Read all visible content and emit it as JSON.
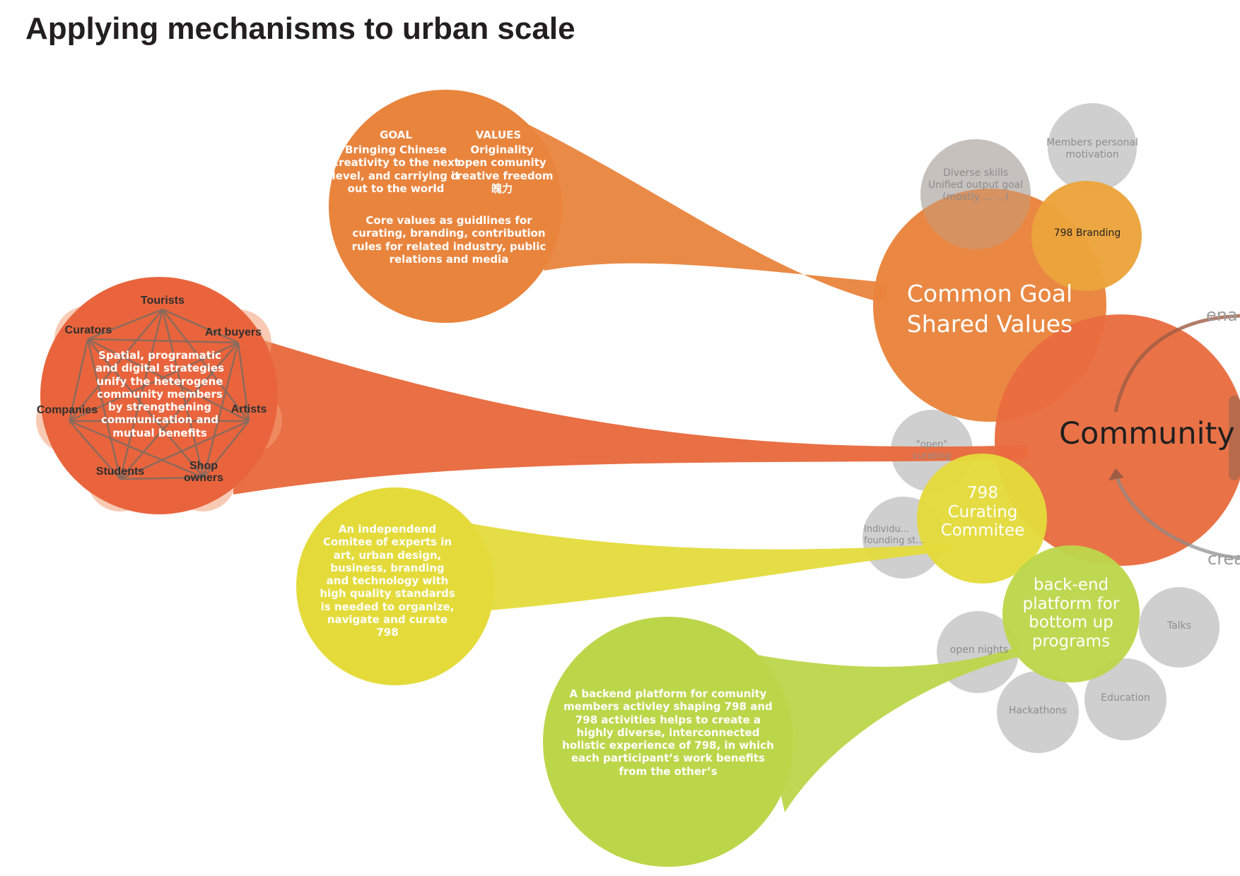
{
  "title": "Applying mechanisms to urban scale",
  "colors": {
    "orange": "#e9843d",
    "red_orange": "#e96c40",
    "amber": "#eba43c",
    "yellow": "#e4db3b",
    "green": "#bcd64a",
    "gray": "#c7c7c7",
    "dark_text": "#231f20"
  },
  "goal_bubble": {
    "goal_heading": "GOAL",
    "goal_text": "Bringing Chinese\ncreativity to the next\nlevel, and carriying it\nout to the world",
    "values_heading": "VALUES",
    "values_text": "Originality\nopen comunity\ncreative freedom\n魄力",
    "core_text": "Core values as guidlines for\ncurating, branding, contribution\nrules for related industry, public\nrelations and media"
  },
  "community_bubble": {
    "center_text": "Spatial, programatic\nand digital strategies\nunify the heterogene\ncommunity members\nby strengthening\ncommunication and\nmutual benefits",
    "nodes": [
      "Tourists",
      "Art buyers",
      "Artists",
      "Shop\nowners",
      "Students",
      "Companies",
      "Curators"
    ]
  },
  "committee_bubble": {
    "text": "An independend\nComitee of experts in\nart, urban design,\nbusiness, branding\nand technology with\nhigh quality standards\nis needed to organize,\nnavigate and curate\n798"
  },
  "platform_bubble": {
    "text": "A backend platform for comunity\nmembers activley shaping 798 and\n798 activities helps to create a\nhighly diverse, interconnected\nholistic experience of 798, in which\neach participant’s work benefits\nfrom the other’s"
  },
  "main_circles": {
    "common_goal": "Common Goal\nShared Values",
    "community": "Community",
    "curating": "798\nCurating\nCommitee",
    "backend": "back-end\nplatform for\nbottom up\nprograms",
    "branding": "798 Branding"
  },
  "gray_circles": {
    "members": "Members personal\nmotivation",
    "diverse": "Diverse skills\nUnified output goal\n(mostly ... ...)",
    "open_curating": "\"open\"\ncurating",
    "individual": "Individu...\nfounding st...",
    "open_nights": "open nights",
    "talks": "Talks",
    "hackathons": "Hackathons",
    "education": "Education"
  },
  "arrow_labels": {
    "top": "ena",
    "bottom": "crea"
  }
}
